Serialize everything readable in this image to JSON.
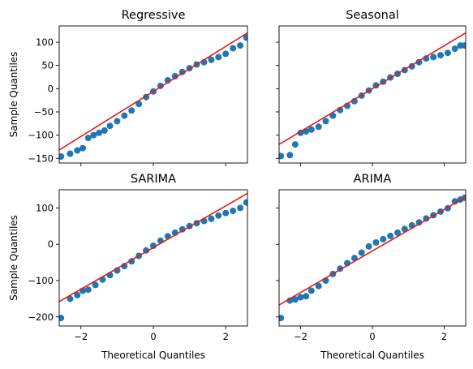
{
  "figure": {
    "x_label": "Theoretical Quantiles",
    "y_label": "Sample Quantiles"
  },
  "colors": {
    "points": "#1f77b4",
    "fit_line": "#e41a1c"
  },
  "chart_data": [
    {
      "type": "scatter",
      "title": "Regressive",
      "xlim": [
        -2.6,
        2.6
      ],
      "ylim": [
        -160,
        135
      ],
      "x_ticks": [
        -2,
        0,
        2
      ],
      "y_ticks": [
        -150,
        -100,
        -50,
        0,
        50,
        100
      ],
      "y_tick_labels": [
        "−150",
        "−100",
        "−50",
        "0",
        "50",
        "100"
      ],
      "x_tick_labels_visible": false,
      "y_tick_labels_visible": true,
      "xlabel": "",
      "ylabel": "Sample Quantiles",
      "fit_line": {
        "x": [
          -2.6,
          2.6
        ],
        "y": [
          -132,
          120
        ]
      },
      "points": [
        [
          -2.55,
          -146
        ],
        [
          -2.3,
          -140
        ],
        [
          -2.1,
          -133
        ],
        [
          -1.95,
          -128
        ],
        [
          -1.8,
          -106
        ],
        [
          -1.65,
          -100
        ],
        [
          -1.5,
          -95
        ],
        [
          -1.35,
          -90
        ],
        [
          -1.2,
          -80
        ],
        [
          -1.0,
          -70
        ],
        [
          -0.8,
          -58
        ],
        [
          -0.6,
          -47
        ],
        [
          -0.4,
          -33
        ],
        [
          -0.2,
          -18
        ],
        [
          0.0,
          -6
        ],
        [
          0.2,
          6
        ],
        [
          0.4,
          18
        ],
        [
          0.6,
          27
        ],
        [
          0.8,
          36
        ],
        [
          1.0,
          44
        ],
        [
          1.2,
          52
        ],
        [
          1.4,
          57
        ],
        [
          1.6,
          62
        ],
        [
          1.8,
          68
        ],
        [
          2.0,
          75
        ],
        [
          2.2,
          87
        ],
        [
          2.4,
          93
        ],
        [
          2.57,
          110
        ]
      ]
    },
    {
      "type": "scatter",
      "title": "Seasonal",
      "xlim": [
        -2.6,
        2.6
      ],
      "ylim": [
        -160,
        135
      ],
      "x_ticks": [
        -2,
        0,
        2
      ],
      "y_ticks": [
        -150,
        -100,
        -50,
        0,
        50,
        100
      ],
      "y_tick_labels": [
        "−150",
        "−100",
        "−50",
        "0",
        "50",
        "100"
      ],
      "x_tick_labels_visible": false,
      "y_tick_labels_visible": false,
      "xlabel": "",
      "ylabel": "",
      "fit_line": {
        "x": [
          -2.6,
          2.6
        ],
        "y": [
          -120,
          120
        ]
      },
      "points": [
        [
          -2.55,
          -145
        ],
        [
          -2.3,
          -143
        ],
        [
          -2.15,
          -120
        ],
        [
          -2.0,
          -95
        ],
        [
          -1.85,
          -92
        ],
        [
          -1.7,
          -88
        ],
        [
          -1.5,
          -82
        ],
        [
          -1.3,
          -70
        ],
        [
          -1.1,
          -58
        ],
        [
          -0.9,
          -46
        ],
        [
          -0.7,
          -37
        ],
        [
          -0.5,
          -27
        ],
        [
          -0.3,
          -15
        ],
        [
          -0.1,
          -4
        ],
        [
          0.1,
          7
        ],
        [
          0.3,
          15
        ],
        [
          0.5,
          24
        ],
        [
          0.7,
          32
        ],
        [
          0.9,
          40
        ],
        [
          1.1,
          48
        ],
        [
          1.3,
          57
        ],
        [
          1.5,
          65
        ],
        [
          1.7,
          68
        ],
        [
          1.9,
          72
        ],
        [
          2.1,
          77
        ],
        [
          2.3,
          86
        ],
        [
          2.45,
          93
        ],
        [
          2.57,
          93
        ]
      ]
    },
    {
      "type": "scatter",
      "title": "SARIMA",
      "xlim": [
        -2.6,
        2.6
      ],
      "ylim": [
        -225,
        150
      ],
      "x_ticks": [
        -2,
        0,
        2
      ],
      "y_ticks": [
        -200,
        -100,
        0,
        100
      ],
      "y_tick_labels": [
        "−200",
        "−100",
        "0",
        "100"
      ],
      "x_tick_labels_visible": true,
      "y_tick_labels_visible": true,
      "x_tick_labels": [
        "−2",
        "0",
        "2"
      ],
      "xlabel": "Theoretical Quantiles",
      "ylabel": "Sample Quantiles",
      "fit_line": {
        "x": [
          -2.6,
          2.6
        ],
        "y": [
          -158,
          140
        ]
      },
      "points": [
        [
          -2.55,
          -203
        ],
        [
          -2.3,
          -150
        ],
        [
          -2.1,
          -140
        ],
        [
          -1.95,
          -128
        ],
        [
          -1.8,
          -125
        ],
        [
          -1.6,
          -112
        ],
        [
          -1.4,
          -97
        ],
        [
          -1.2,
          -85
        ],
        [
          -1.0,
          -72
        ],
        [
          -0.8,
          -60
        ],
        [
          -0.6,
          -47
        ],
        [
          -0.4,
          -32
        ],
        [
          -0.2,
          -17
        ],
        [
          0.0,
          -4
        ],
        [
          0.2,
          10
        ],
        [
          0.4,
          22
        ],
        [
          0.6,
          32
        ],
        [
          0.8,
          41
        ],
        [
          1.0,
          50
        ],
        [
          1.2,
          58
        ],
        [
          1.4,
          64
        ],
        [
          1.6,
          70
        ],
        [
          1.8,
          79
        ],
        [
          2.0,
          86
        ],
        [
          2.2,
          92
        ],
        [
          2.4,
          100
        ],
        [
          2.57,
          115
        ]
      ]
    },
    {
      "type": "scatter",
      "title": "ARIMA",
      "xlim": [
        -2.6,
        2.6
      ],
      "ylim": [
        -225,
        150
      ],
      "x_ticks": [
        -2,
        0,
        2
      ],
      "y_ticks": [
        -200,
        -100,
        0,
        100
      ],
      "y_tick_labels": [
        "−200",
        "−100",
        "0",
        "100"
      ],
      "x_tick_labels_visible": true,
      "y_tick_labels_visible": false,
      "x_tick_labels": [
        "−2",
        "0",
        "2"
      ],
      "xlabel": "Theoretical Quantiles",
      "ylabel": "",
      "fit_line": {
        "x": [
          -2.6,
          2.6
        ],
        "y": [
          -167,
          130
        ]
      },
      "points": [
        [
          -2.55,
          -203
        ],
        [
          -2.3,
          -155
        ],
        [
          -2.15,
          -152
        ],
        [
          -2.0,
          -146
        ],
        [
          -1.85,
          -143
        ],
        [
          -1.7,
          -128
        ],
        [
          -1.5,
          -115
        ],
        [
          -1.3,
          -100
        ],
        [
          -1.1,
          -82
        ],
        [
          -0.9,
          -67
        ],
        [
          -0.7,
          -52
        ],
        [
          -0.5,
          -38
        ],
        [
          -0.3,
          -23
        ],
        [
          -0.1,
          -6
        ],
        [
          0.1,
          5
        ],
        [
          0.3,
          14
        ],
        [
          0.5,
          23
        ],
        [
          0.7,
          32
        ],
        [
          0.9,
          42
        ],
        [
          1.1,
          52
        ],
        [
          1.3,
          60
        ],
        [
          1.5,
          71
        ],
        [
          1.7,
          80
        ],
        [
          1.9,
          90
        ],
        [
          2.1,
          99
        ],
        [
          2.3,
          118
        ],
        [
          2.45,
          123
        ],
        [
          2.57,
          128
        ]
      ]
    }
  ]
}
